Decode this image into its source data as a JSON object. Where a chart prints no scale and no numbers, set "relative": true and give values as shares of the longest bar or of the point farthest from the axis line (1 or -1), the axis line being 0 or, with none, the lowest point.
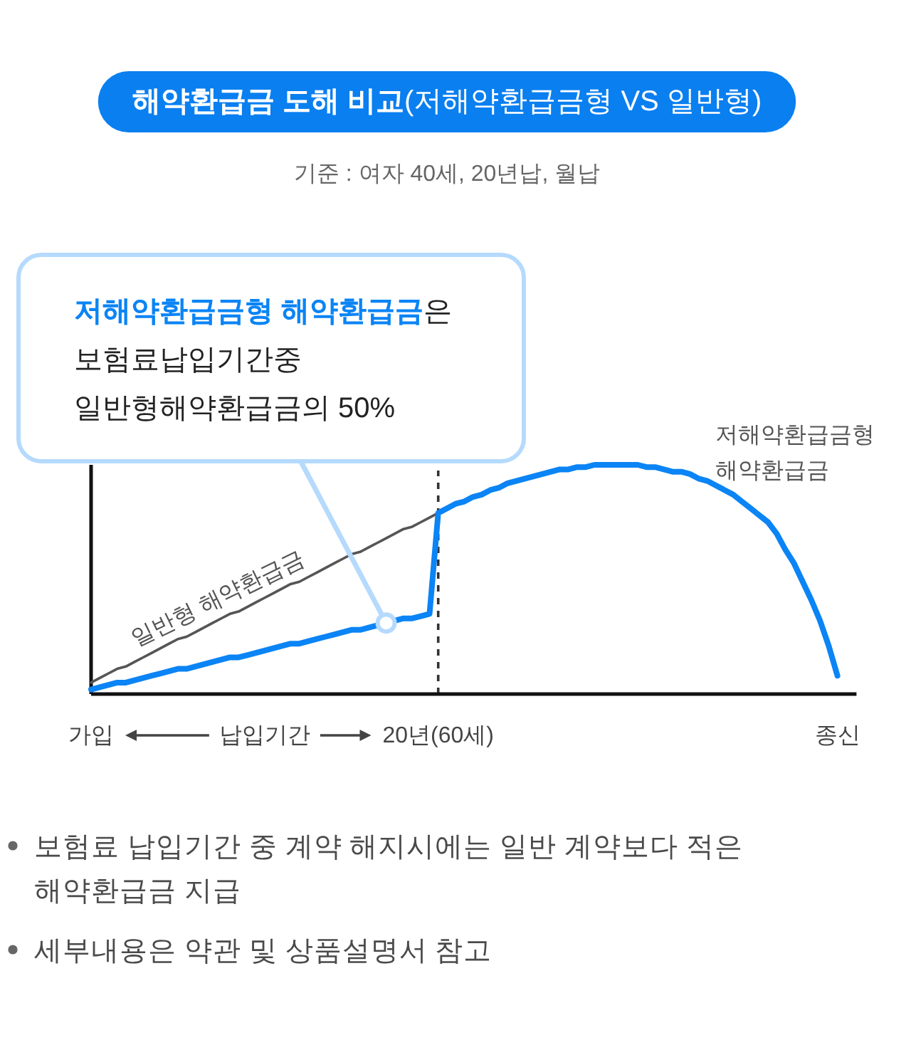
{
  "chart_data": {
    "type": "line",
    "title": "**해약환급금 도해 비교**(저해약환급금형 VS 일반형)",
    "subtitle": "기준 : 여자 40세, 20년납, 월납",
    "xlabel": "납입기간",
    "relative": true,
    "tick_labels": "x",
    "categories": [
      "가입",
      null,
      null,
      null,
      null,
      null,
      null,
      null,
      null,
      null,
      null,
      null,
      null,
      null,
      null,
      null,
      null,
      null,
      null,
      null,
      null,
      null,
      null,
      null,
      null,
      null,
      null,
      null,
      null,
      null,
      null,
      null,
      null,
      null,
      null,
      null,
      null,
      null,
      null,
      null,
      "20년(60세)",
      null,
      null,
      null,
      null,
      null,
      null,
      null,
      null,
      null,
      null,
      null,
      null,
      null,
      null,
      null,
      null,
      null,
      null,
      null,
      null,
      null,
      null,
      null,
      null,
      null,
      null,
      null,
      null,
      null,
      null,
      null,
      null,
      null,
      null,
      null,
      null,
      null,
      null,
      null,
      null,
      null,
      null,
      null,
      null,
      null,
      "종신"
    ],
    "series": [
      {
        "name": "일반형 해약환급금",
        "color": "#555555",
        "values": [
          0.05,
          0.07,
          0.09,
          0.11,
          0.12,
          0.14,
          0.16,
          0.18,
          0.2,
          0.22,
          0.24,
          0.25,
          0.27,
          0.29,
          0.31,
          0.33,
          0.35,
          0.36,
          0.38,
          0.4,
          0.42,
          0.44,
          0.46,
          0.48,
          0.49,
          0.51,
          0.53,
          0.55,
          0.57,
          0.59,
          0.61,
          0.62,
          0.64,
          0.66,
          0.68,
          0.7,
          0.72,
          0.73,
          0.75,
          0.77,
          0.79,
          null,
          null,
          null,
          null,
          null,
          null,
          null,
          null,
          null,
          null,
          null,
          null,
          null,
          null,
          null,
          null,
          null,
          null,
          null,
          null,
          null,
          null,
          null,
          null,
          null,
          null,
          null,
          null,
          null,
          null,
          null,
          null,
          null,
          null,
          null,
          null,
          null,
          null,
          null,
          null,
          null,
          null,
          null,
          null,
          null,
          null
        ]
      },
      {
        "name": "저해약환급금형 해약환급금",
        "color": "#0b84f5",
        "values": [
          0.02,
          0.03,
          0.04,
          0.05,
          0.05,
          0.06,
          0.07,
          0.08,
          0.09,
          0.1,
          0.11,
          0.11,
          0.12,
          0.13,
          0.14,
          0.15,
          0.16,
          0.16,
          0.17,
          0.18,
          0.19,
          0.2,
          0.21,
          0.22,
          0.22,
          0.23,
          0.24,
          0.25,
          0.26,
          0.27,
          0.28,
          0.28,
          0.29,
          0.3,
          0.31,
          0.32,
          0.33,
          0.33,
          0.34,
          0.35,
          0.79,
          0.81,
          0.83,
          0.84,
          0.86,
          0.87,
          0.89,
          0.9,
          0.92,
          0.93,
          0.94,
          0.95,
          0.96,
          0.97,
          0.98,
          0.98,
          0.99,
          0.99,
          1,
          1,
          1,
          1,
          1,
          1,
          0.99,
          0.99,
          0.98,
          0.97,
          0.97,
          0.96,
          0.94,
          0.93,
          0.91,
          0.89,
          0.87,
          0.84,
          0.81,
          0.78,
          0.75,
          0.7,
          0.63,
          0.57,
          0.49,
          0.41,
          0.32,
          0.21,
          0.08
        ]
      }
    ],
    "ref_lines": [
      {
        "axis": "x",
        "value": "20년(60세)",
        "line_style": "dashed",
        "color": "#333333"
      }
    ],
    "annotations": [
      "**저해약환급금형 해약환급금**은 보험료납입기간중 일반형해약환급금의 50%",
      "보험료 납입기간 중 계약 해지시에는 일반 계약보다 적은 해약환급금 지급",
      "세부내용은 약관 및 상품설명서 참고"
    ]
  }
}
